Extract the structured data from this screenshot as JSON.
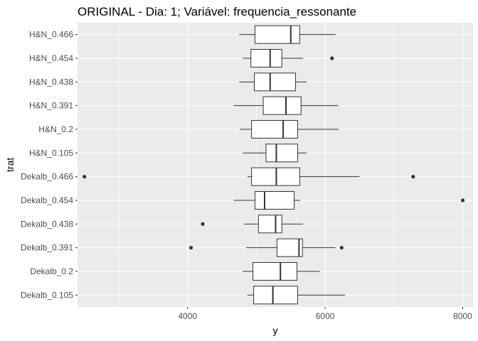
{
  "chart_data": {
    "type": "boxplot",
    "orientation": "horizontal",
    "title": "ORIGINAL - Dia: 1; Variável: frequencia_ressonante",
    "xlabel": "y",
    "ylabel": "trat",
    "xlim": [
      2400,
      8150
    ],
    "x_ticks": [
      4000,
      6000,
      8000
    ],
    "x_tick_labels": [
      "4000",
      "6000",
      "8000"
    ],
    "grid": true,
    "panel_color": "#ebebeb",
    "grid_color": "#ffffff",
    "box_fill": "#ffffff",
    "box_stroke": "#333333",
    "categories": [
      "H&N_0.466",
      "H&N_0.454",
      "H&N_0.438",
      "H&N_0.391",
      "H&N_0.2",
      "H&N_0.105",
      "Dekalb_0.466",
      "Dekalb_0.454",
      "Dekalb_0.438",
      "Dekalb_0.391",
      "Dekalb_0.2",
      "Dekalb_0.105"
    ],
    "boxes": [
      {
        "category": "H&N_0.466",
        "whisker_low": 4750,
        "q1": 4980,
        "median": 5500,
        "q3": 5630,
        "whisker_high": 6150,
        "outliers": []
      },
      {
        "category": "H&N_0.454",
        "whisker_low": 4800,
        "q1": 4920,
        "median": 5200,
        "q3": 5370,
        "whisker_high": 5680,
        "outliers": [
          6100
        ]
      },
      {
        "category": "H&N_0.438",
        "whisker_low": 4750,
        "q1": 4970,
        "median": 5200,
        "q3": 5570,
        "whisker_high": 5730,
        "outliers": []
      },
      {
        "category": "H&N_0.391",
        "whisker_low": 4670,
        "q1": 5100,
        "median": 5430,
        "q3": 5650,
        "whisker_high": 6190,
        "outliers": []
      },
      {
        "category": "H&N_0.2",
        "whisker_low": 4760,
        "q1": 4930,
        "median": 5390,
        "q3": 5600,
        "whisker_high": 6200,
        "outliers": []
      },
      {
        "category": "H&N_0.105",
        "whisker_low": 4800,
        "q1": 5140,
        "median": 5290,
        "q3": 5600,
        "whisker_high": 5730,
        "outliers": []
      },
      {
        "category": "Dekalb_0.466",
        "whisker_low": 4870,
        "q1": 4930,
        "median": 5290,
        "q3": 5630,
        "whisker_high": 6500,
        "outliers": [
          2500,
          7280
        ]
      },
      {
        "category": "Dekalb_0.454",
        "whisker_low": 4670,
        "q1": 4980,
        "median": 5120,
        "q3": 5550,
        "whisker_high": 5640,
        "outliers": [
          8000
        ]
      },
      {
        "category": "Dekalb_0.438",
        "whisker_low": 4820,
        "q1": 5030,
        "median": 5280,
        "q3": 5370,
        "whisker_high": 5680,
        "outliers": [
          4220
        ]
      },
      {
        "category": "Dekalb_0.391",
        "whisker_low": 4850,
        "q1": 5300,
        "median": 5620,
        "q3": 5670,
        "whisker_high": 6150,
        "outliers": [
          4050,
          6240
        ]
      },
      {
        "category": "Dekalb_0.2",
        "whisker_low": 4800,
        "q1": 4950,
        "median": 5350,
        "q3": 5590,
        "whisker_high": 5920,
        "outliers": []
      },
      {
        "category": "Dekalb_0.105",
        "whisker_low": 4870,
        "q1": 4960,
        "median": 5240,
        "q3": 5600,
        "whisker_high": 6290,
        "outliers": []
      }
    ]
  }
}
